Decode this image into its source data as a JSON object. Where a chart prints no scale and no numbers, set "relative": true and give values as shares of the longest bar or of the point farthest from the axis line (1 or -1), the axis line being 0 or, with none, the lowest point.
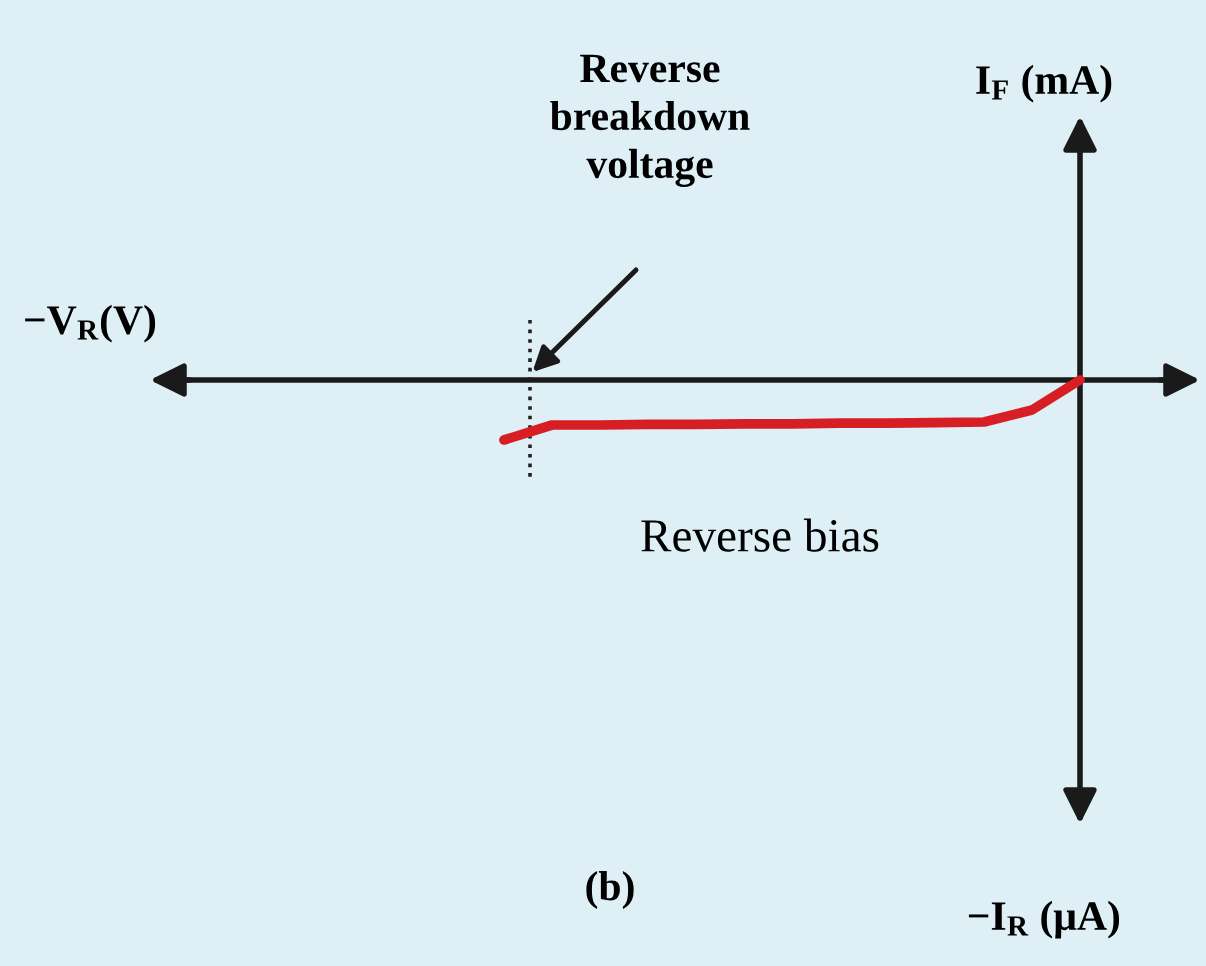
{
  "chart_data": {
    "type": "line",
    "relative": true,
    "categories": [
      null,
      null,
      null,
      null,
      null,
      null,
      null,
      null,
      null,
      null,
      null,
      null,
      null
    ],
    "series": [
      {
        "color": "#d81e25",
        "values": [
          -1,
          -0.75,
          -0.75,
          -0.74,
          -0.74,
          -0.73,
          -0.73,
          -0.72,
          -0.72,
          -0.71,
          -0.7,
          -0.5,
          0
        ]
      }
    ],
    "annotations": [
      "Reverse\nbreakdown\nvoltage",
      "−V$_{R}$(V)",
      "I$_{F}$ (mA)",
      "−I$_{R}$ (μA)",
      "Reverse bias",
      "(b)"
    ],
    "marker": "none",
    "line_style": "solid"
  }
}
